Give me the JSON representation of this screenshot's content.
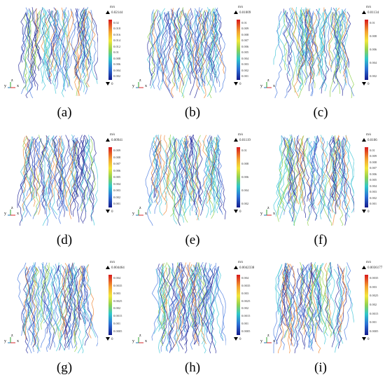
{
  "unit": "m/s",
  "axis_labels": {
    "y": "y",
    "z": "z",
    "x": "x"
  },
  "panels": [
    {
      "caption": "(a)",
      "max": "0.02144",
      "min": "0",
      "ticks": [
        "0.02",
        "0.018",
        "0.016",
        "0.014",
        "0.012",
        "0.01",
        "0.008",
        "0.006",
        "0.004",
        "0.002"
      ]
    },
    {
      "caption": "(b)",
      "max": "0.01009",
      "min": "0",
      "ticks": [
        "0.01",
        "0.009",
        "0.008",
        "0.007",
        "0.006",
        "0.005",
        "0.004",
        "0.003",
        "0.002",
        "0.001"
      ]
    },
    {
      "caption": "(c)",
      "max": "0.01134",
      "min": "0",
      "ticks": [
        "0.01",
        "0.008",
        "0.006",
        "0.004",
        "0.002"
      ]
    },
    {
      "caption": "(d)",
      "max": "0.00941",
      "min": "0",
      "ticks": [
        "0.009",
        "0.008",
        "0.007",
        "0.006",
        "0.005",
        "0.004",
        "0.003",
        "0.002",
        "0.001"
      ]
    },
    {
      "caption": "(e)",
      "max": "0.01119",
      "min": "0",
      "ticks": [
        "0.01",
        "0.008",
        "0.006",
        "0.004",
        "0.002"
      ]
    },
    {
      "caption": "(f)",
      "max": "0.0106",
      "min": "0",
      "ticks": [
        "0.01",
        "0.009",
        "0.008",
        "0.007",
        "0.006",
        "0.005",
        "0.004",
        "0.003",
        "0.002",
        "0.001"
      ]
    },
    {
      "caption": "(g)",
      "max": "0.004464",
      "min": "0",
      "ticks": [
        "0.004",
        "0.0035",
        "0.003",
        "0.0025",
        "0.002",
        "0.0015",
        "0.001",
        "0.0005"
      ]
    },
    {
      "caption": "(h)",
      "max": "0.0042338",
      "min": "0",
      "ticks": [
        "0.004",
        "0.0035",
        "0.003",
        "0.0025",
        "0.002",
        "0.0015",
        "0.001",
        "0.0005"
      ]
    },
    {
      "caption": "(i)",
      "max": "0.0036177",
      "min": "0",
      "ticks": [
        "0.0035",
        "0.003",
        "0.0025",
        "0.002",
        "0.0015",
        "0.001",
        "0.0005"
      ]
    }
  ],
  "colors": {
    "line_dark": "#2a2f9e",
    "line_mid": "#4f7fe0",
    "line_cyan": "#46c8d8",
    "line_green": "#8fd14f",
    "line_warm": "#f08a3a"
  }
}
